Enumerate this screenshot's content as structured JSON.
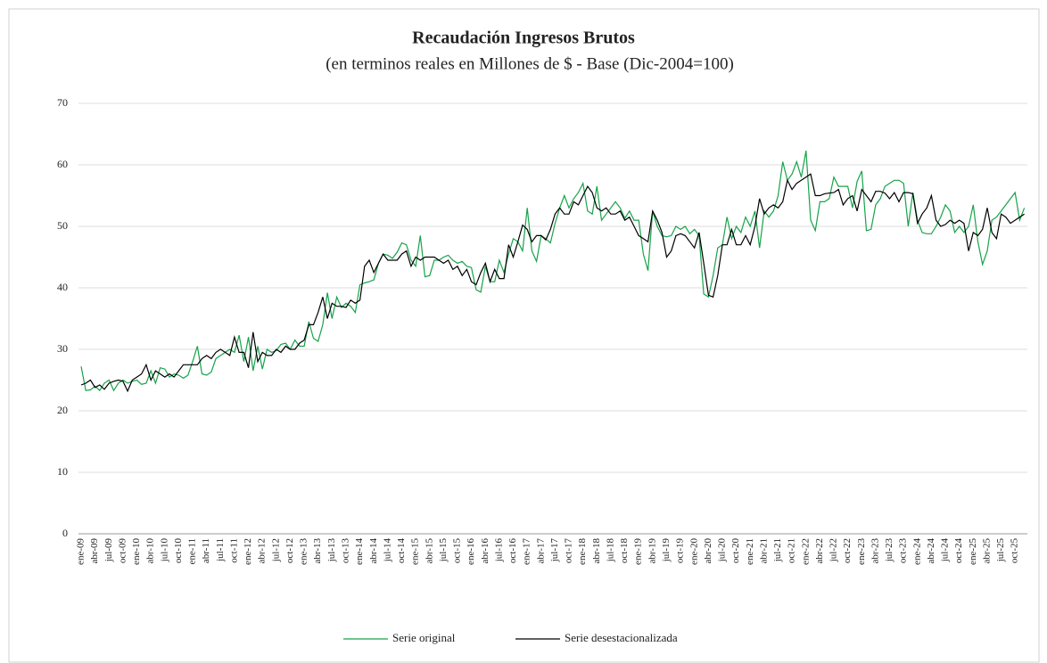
{
  "chart_data": {
    "type": "line",
    "title": "Recaudación Ingresos Brutos",
    "subtitle": "(en terminos reales en Millones de $ - Base (Dic-2004=100)",
    "categories": [
      "ene-09",
      null,
      null,
      "abr-09",
      null,
      null,
      "jul-09",
      null,
      null,
      "oct-09",
      null,
      null,
      "ene-10",
      null,
      null,
      "abr-10",
      null,
      null,
      "jul-10",
      null,
      null,
      "oct-10",
      null,
      null,
      "ene-11",
      null,
      null,
      "abr-11",
      null,
      null,
      "jul-11",
      null,
      null,
      "oct-11",
      null,
      null,
      "ene-12",
      null,
      null,
      "abr-12",
      null,
      null,
      "jul-12",
      null,
      null,
      "oct-12",
      null,
      null,
      "ene-13",
      null,
      null,
      "abr-13",
      null,
      null,
      "jul-13",
      null,
      null,
      "oct-13",
      null,
      null,
      "ene-14",
      null,
      null,
      "abr-14",
      null,
      null,
      "jul-14",
      null,
      null,
      "oct-14",
      null,
      null,
      "ene-15",
      null,
      null,
      "abr-15",
      null,
      null,
      "jul-15",
      null,
      null,
      "oct-15",
      null,
      null,
      "ene-16",
      null,
      null,
      "abr-16",
      null,
      null,
      "jul-16",
      null,
      null,
      "oct-16",
      null,
      null,
      "ene-17",
      null,
      null,
      "abr-17",
      null,
      null,
      "jul-17",
      null,
      null,
      "oct-17",
      null,
      null,
      "ene-18",
      null,
      null,
      "abr-18",
      null,
      null,
      "jul-18",
      null,
      null,
      "oct-18",
      null,
      null,
      "ene-19",
      null,
      null,
      "abr-19",
      null,
      null,
      "jul-19",
      null,
      null,
      "oct-19",
      null,
      null,
      "ene-20",
      null,
      null,
      "abr-20",
      null,
      null,
      "jul-20",
      null,
      null,
      "oct-20",
      null,
      null,
      "ene-21",
      null,
      null,
      "abr-21",
      null,
      null,
      "jul-21",
      null,
      null,
      "oct-21",
      null,
      null,
      "ene-22",
      null,
      null,
      "abr-22",
      null,
      null,
      "jul-22",
      null,
      null,
      "oct-22",
      null,
      null,
      "ene-23",
      null,
      null,
      "abr-23",
      null,
      null,
      "jul-23",
      null,
      null,
      "oct-23",
      null,
      null,
      "ene-24",
      null,
      null,
      "abr-24",
      null,
      null,
      "jul-24",
      null,
      null,
      "oct-24",
      null,
      null,
      "ene-25",
      null,
      null,
      "abr-25",
      null,
      null,
      "jul-25",
      null,
      null,
      "oct-25",
      null,
      null
    ],
    "series": [
      {
        "name": "Serie original",
        "color": "#16a34a",
        "values": [
          27.2,
          23.3,
          23.4,
          24.0,
          23.3,
          24.5,
          25.0,
          23.3,
          24.5,
          25.0,
          24.5,
          24.8,
          25.0,
          24.3,
          24.5,
          26.5,
          24.5,
          27.0,
          26.8,
          25.5,
          26.0,
          25.8,
          25.3,
          25.8,
          28.0,
          30.5,
          26.0,
          25.8,
          26.3,
          28.5,
          29.0,
          29.5,
          30.0,
          29.5,
          32.3,
          28.0,
          32.0,
          26.5,
          30.5,
          26.8,
          30.0,
          29.5,
          29.8,
          30.8,
          31.0,
          30.0,
          31.5,
          30.5,
          30.5,
          34.5,
          31.8,
          31.3,
          34.0,
          39.2,
          35.0,
          38.5,
          36.8,
          37.5,
          37.0,
          36.0,
          40.5,
          40.8,
          41.0,
          41.3,
          44.0,
          45.5,
          45.3,
          44.8,
          45.8,
          47.3,
          47.0,
          44.5,
          43.5,
          48.5,
          41.8,
          42.0,
          44.5,
          44.5,
          45.0,
          45.3,
          44.5,
          44.0,
          44.3,
          43.5,
          43.3,
          39.7,
          39.3,
          43.5,
          41.0,
          41.0,
          44.5,
          42.5,
          45.5,
          48.0,
          47.5,
          46.0,
          53.0,
          46.0,
          44.3,
          48.5,
          48.0,
          47.3,
          50.5,
          53.0,
          55.0,
          53.0,
          54.5,
          55.5,
          57.0,
          52.5,
          52.0,
          56.5,
          51.0,
          52.0,
          53.0,
          54.0,
          53.0,
          51.3,
          52.5,
          51.0,
          51.0,
          45.5,
          42.8,
          52.5,
          50.0,
          48.5,
          48.3,
          48.5,
          50.0,
          49.5,
          50.0,
          48.8,
          49.5,
          48.5,
          39.0,
          38.5,
          42.0,
          46.5,
          47.0,
          51.5,
          48.0,
          50.0,
          49.0,
          51.5,
          50.0,
          52.5,
          46.5,
          52.5,
          51.5,
          52.5,
          55.0,
          60.5,
          57.5,
          58.5,
          60.5,
          58.0,
          62.3,
          51.0,
          49.3,
          54.0,
          54.0,
          54.5,
          58.0,
          56.5,
          56.5,
          56.5,
          53.0,
          57.3,
          59.0,
          49.3,
          49.5,
          53.5,
          54.5,
          56.5,
          57.0,
          57.5,
          57.5,
          57.0,
          50.0,
          55.5,
          51.0,
          49.0,
          48.8,
          48.8,
          50.0,
          51.5,
          53.5,
          52.5,
          49.0,
          50.0,
          49.0,
          50.0,
          53.5,
          47.5,
          43.8,
          46.0,
          51.0,
          51.5,
          52.5,
          53.5,
          54.5,
          55.5,
          51.0,
          53.0
        ]
      },
      {
        "name": "Serie desestacionalizada",
        "color": "#000000",
        "values": [
          24.2,
          24.5,
          25.0,
          23.8,
          24.2,
          23.5,
          24.5,
          24.8,
          25.0,
          24.8,
          23.2,
          25.0,
          25.5,
          26.0,
          27.5,
          25.0,
          26.5,
          26.0,
          25.5,
          26.0,
          25.5,
          26.5,
          27.5,
          27.5,
          27.5,
          27.5,
          28.5,
          29.0,
          28.5,
          29.5,
          30.0,
          29.5,
          29.0,
          32.0,
          29.5,
          29.5,
          27.0,
          32.8,
          28.0,
          29.5,
          29.0,
          29.0,
          30.0,
          29.5,
          30.5,
          30.0,
          30.0,
          31.0,
          31.5,
          34.0,
          34.0,
          36.0,
          38.5,
          35.0,
          37.5,
          37.0,
          37.0,
          36.8,
          38.0,
          37.5,
          38.0,
          43.5,
          44.5,
          42.5,
          44.0,
          45.5,
          44.5,
          44.5,
          44.5,
          45.5,
          46.0,
          43.5,
          45.0,
          44.5,
          45.0,
          45.0,
          45.0,
          44.5,
          44.0,
          44.5,
          43.0,
          43.5,
          42.0,
          43.0,
          41.0,
          40.5,
          42.5,
          44.0,
          41.0,
          43.0,
          41.5,
          41.5,
          47.0,
          45.0,
          47.5,
          50.2,
          49.5,
          47.5,
          48.5,
          48.5,
          47.8,
          49.5,
          52.0,
          53.0,
          52.0,
          52.0,
          54.0,
          53.5,
          55.0,
          56.5,
          55.5,
          53.0,
          52.5,
          53.0,
          52.0,
          52.0,
          52.5,
          51.0,
          51.5,
          50.0,
          48.5,
          48.0,
          47.5,
          52.5,
          51.0,
          49.0,
          45.0,
          46.0,
          48.5,
          48.8,
          48.5,
          47.5,
          46.5,
          49.0,
          44.0,
          38.8,
          38.5,
          42.0,
          47.0,
          47.0,
          49.5,
          47.0,
          47.0,
          48.5,
          47.0,
          50.0,
          54.5,
          52.0,
          53.0,
          53.5,
          53.0,
          54.0,
          57.5,
          56.0,
          57.0,
          57.5,
          58.0,
          58.5,
          55.0,
          55.0,
          55.3,
          55.4,
          55.5,
          56.0,
          53.5,
          54.5,
          55.0,
          52.5,
          56.0,
          55.0,
          54.0,
          55.7,
          55.7,
          55.4,
          54.5,
          55.5,
          54.0,
          55.5,
          55.5,
          55.3,
          50.5,
          52.0,
          53.0,
          55.0,
          51.0,
          50.0,
          50.3,
          51.0,
          50.5,
          51.0,
          50.5,
          46.0,
          49.0,
          48.5,
          49.5,
          53.0,
          49.0,
          48.0,
          52.0,
          51.5,
          50.5,
          51.0,
          51.5,
          52.0
        ]
      }
    ],
    "ylim": [
      0,
      70
    ],
    "yticks": [
      0,
      10,
      20,
      30,
      40,
      50,
      60,
      70
    ],
    "grid": true,
    "legend": "bottom"
  }
}
